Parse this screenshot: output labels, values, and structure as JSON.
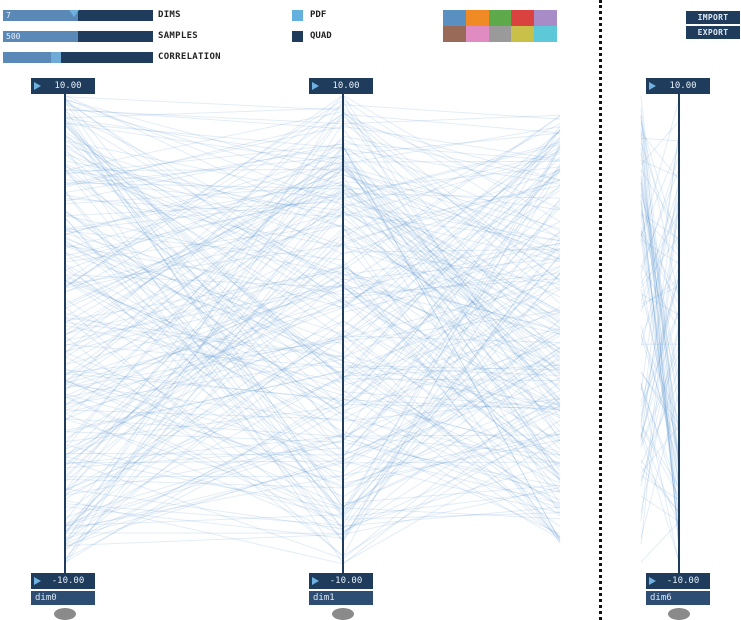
{
  "controls": {
    "dims": {
      "label": "DIMS",
      "value": "7",
      "fraction": 0.5
    },
    "samples": {
      "label": "SAMPLES",
      "value": "500",
      "fraction": 0.5
    },
    "correlation": {
      "label": "CORRELATION",
      "fraction": 0.33
    }
  },
  "legend": {
    "pdf": {
      "label": "PDF",
      "color": "#64b0de"
    },
    "quad": {
      "label": "QUAD",
      "color": "#1f3c5c"
    }
  },
  "palette": [
    "#5a8fc2",
    "#f08a24",
    "#5eaa4a",
    "#d9423e",
    "#a78cc8",
    "#9a6a58",
    "#e08cc2",
    "#9a9a9a",
    "#c9c04a",
    "#5cc8d8"
  ],
  "buttons": {
    "import_label": "IMPORT",
    "export_label": "EXPORT"
  },
  "axes": [
    {
      "name": "dim0",
      "max": "10.00",
      "min": "-10.00"
    },
    {
      "name": "dim1",
      "max": "10.00",
      "min": "-10.00"
    },
    {
      "name": "dim6",
      "max": "10.00",
      "min": "-10.00"
    }
  ],
  "colors": {
    "line": "#4f8fcf",
    "axis": "#1f3c5c"
  }
}
